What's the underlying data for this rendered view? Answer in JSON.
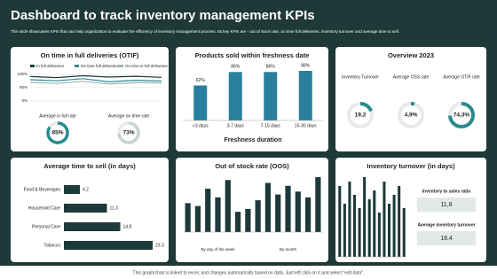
{
  "header": {
    "title": "Dashboard to track inventory management KPIs",
    "subtitle": "This slide showcases KPIs that can help organization to evaluate the efficiency of inventory management process. Its key KPIs are - out of stock rate, on time full deliveries, inventory turnover and average time to sell."
  },
  "footer": "This graph/chart is linked to excel, and changes automatically based on data. Just left click on it and select \"edit data\".",
  "chart_data": [
    {
      "type": "line",
      "title": "On time in full deliveries (OTIF)",
      "categories": [
        null,
        null,
        null,
        null,
        null,
        null
      ],
      "series": [
        {
          "name": "In full deliveries",
          "color": "#1d3a3a",
          "values": [
            92,
            88,
            95,
            90,
            93,
            89
          ]
        },
        {
          "name": "On time full deliveries",
          "color": "#2a8a8f",
          "values": [
            80,
            76,
            84,
            72,
            78,
            75
          ]
        },
        {
          "name": "On time in full deliveries",
          "color": "#9fb3b3",
          "values": [
            70,
            66,
            74,
            64,
            69,
            68
          ]
        }
      ],
      "ylim": [
        0,
        100
      ],
      "yticks": [
        {
          "value": 0,
          "label": "0%"
        },
        {
          "value": 50,
          "label": "50%"
        },
        {
          "value": 100,
          "label": "100%"
        }
      ]
    },
    {
      "type": "gauge",
      "categories": [
        "Average in full rate",
        "Average on time rate"
      ],
      "values": [
        85,
        73
      ],
      "value_labels": [
        "85%",
        "73%"
      ],
      "colors": [
        "#2a8a8f",
        "#c9d1d1"
      ]
    },
    {
      "type": "bar",
      "title": "Products sold within freshness date",
      "x_label": "Freshness duration",
      "categories": [
        "<3 days",
        "3-7 days",
        "7-15 days",
        "15-30 days"
      ],
      "values": [
        62,
        86,
        86,
        88
      ],
      "value_labels": [
        "62%",
        "86%",
        "86%",
        "88%"
      ],
      "color": "#2a7f9e"
    },
    {
      "type": "donut",
      "title": "Overview 2023",
      "categories": [
        "Inventory Turnover",
        "Average OSS rate",
        "Average OTIF rate"
      ],
      "values": [
        19.2,
        4.9,
        74.3
      ],
      "value_labels": [
        "19,2",
        "4,9%",
        "74,3%"
      ],
      "color": "#2a8a8f"
    },
    {
      "type": "hbar",
      "title": "Average time to sell (in days)",
      "categories": [
        "Food & Beverages",
        "Household Care",
        "Personal Care",
        "Tobacco"
      ],
      "values": [
        4.2,
        11.3,
        14.8,
        23.3
      ],
      "color": "#1d3a3a"
    },
    {
      "type": "bar",
      "title": "Out of stock rate (OOS)",
      "group_labels": [
        "By day of the week",
        "By month"
      ],
      "categories": [
        null,
        null,
        null,
        null,
        null,
        null,
        null,
        null,
        null,
        null,
        null,
        null,
        null,
        null
      ],
      "values": [
        50,
        45,
        75,
        60,
        90,
        35,
        40,
        55,
        85,
        65,
        80,
        70,
        60,
        95
      ],
      "color": "#1d3a3a"
    },
    {
      "type": "bar",
      "title": "Inventory turnover (in days)",
      "categories": [
        null,
        null,
        null,
        null,
        null,
        null,
        null,
        null,
        null,
        null,
        null,
        null,
        null,
        null
      ],
      "values": [
        80,
        60,
        85,
        70,
        55,
        90,
        65,
        75,
        50,
        85,
        60,
        70,
        80,
        55
      ],
      "color": "#1d3a3a"
    },
    {
      "type": "kpi",
      "categories": [
        "Inventory to sales ratio",
        "Average inventory turnover"
      ],
      "values": [
        11.8,
        18.4
      ],
      "value_labels": [
        "11,8",
        "18.4"
      ]
    }
  ]
}
